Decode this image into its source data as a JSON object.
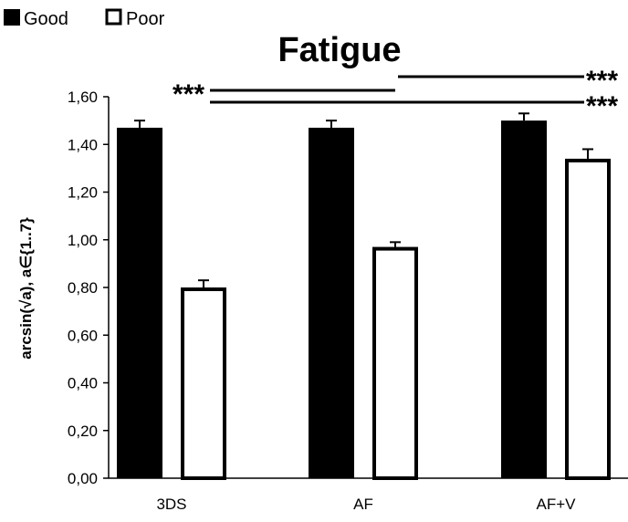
{
  "chart_data": {
    "type": "bar",
    "title": "Fatigue",
    "ylabel": "arcsin(√a), a∈{1..7}",
    "xlabel": "",
    "categories": [
      "3DS",
      "AF",
      "AF+V"
    ],
    "series": [
      {
        "name": "Good",
        "values": [
          1.47,
          1.47,
          1.5
        ],
        "errors": [
          0.03,
          0.03,
          0.03
        ],
        "color": "#000000",
        "fill": "solid"
      },
      {
        "name": "Poor",
        "values": [
          0.8,
          0.97,
          1.34
        ],
        "errors": [
          0.03,
          0.02,
          0.04
        ],
        "color": "#000000",
        "fill": "hollow"
      }
    ],
    "ylim": [
      0,
      1.6
    ],
    "yticks": [
      "0,00",
      "0,20",
      "0,40",
      "0,60",
      "0,80",
      "1,00",
      "1,20",
      "1,40",
      "1,60"
    ],
    "ytick_values": [
      0,
      0.2,
      0.4,
      0.6,
      0.8,
      1.0,
      1.2,
      1.4,
      1.6
    ],
    "legend_position": "top-left",
    "grid": false,
    "significance": [
      {
        "label": "***",
        "from": "3DS",
        "to": "AF"
      },
      {
        "label": "***",
        "from": "AF",
        "to": "AF+V"
      },
      {
        "label": "***",
        "from": "3DS",
        "to": "AF+V"
      }
    ]
  }
}
